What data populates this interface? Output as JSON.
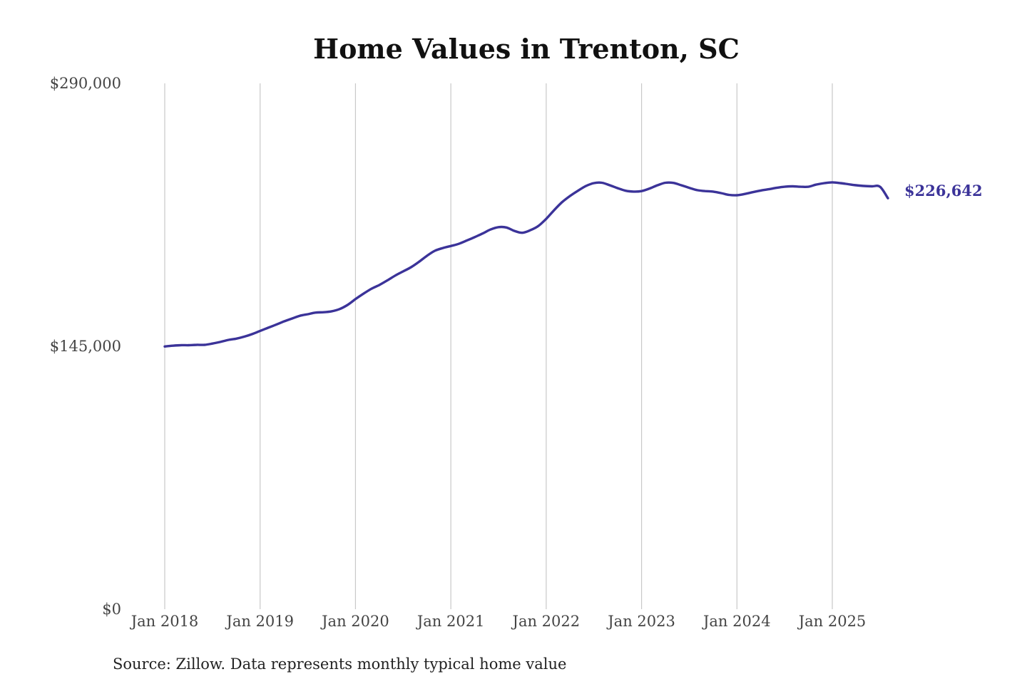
{
  "chart_data": {
    "type": "line",
    "title": "Home Values in Trenton, SC",
    "xlabel": "",
    "ylabel": "",
    "x_ticks": [
      "Jan 2018",
      "Jan 2019",
      "Jan 2020",
      "Jan 2021",
      "Jan 2022",
      "Jan 2023",
      "Jan 2024",
      "Jan 2025"
    ],
    "y_ticks": [
      "$0",
      "$145,000",
      "$290,000"
    ],
    "ylim": [
      0,
      290000
    ],
    "xlim": [
      "2018-01",
      "2025-08"
    ],
    "grid": "vertical",
    "color": "#3b3399",
    "end_label": "$226,642",
    "series": [
      {
        "x": [
          "2018-01",
          "2018-02",
          "2018-03",
          "2018-04",
          "2018-05",
          "2018-06",
          "2018-07",
          "2018-08",
          "2018-09",
          "2018-10",
          "2018-11",
          "2018-12",
          "2019-01",
          "2019-02",
          "2019-03",
          "2019-04",
          "2019-05",
          "2019-06",
          "2019-07",
          "2019-08",
          "2019-09",
          "2019-10",
          "2019-11",
          "2019-12",
          "2020-01",
          "2020-02",
          "2020-03",
          "2020-04",
          "2020-05",
          "2020-06",
          "2020-07",
          "2020-08",
          "2020-09",
          "2020-10",
          "2020-11",
          "2020-12",
          "2021-01",
          "2021-02",
          "2021-03",
          "2021-04",
          "2021-05",
          "2021-06",
          "2021-07",
          "2021-08",
          "2021-09",
          "2021-10",
          "2021-11",
          "2021-12",
          "2022-01",
          "2022-02",
          "2022-03",
          "2022-04",
          "2022-05",
          "2022-06",
          "2022-07",
          "2022-08",
          "2022-09",
          "2022-10",
          "2022-11",
          "2022-12",
          "2023-01",
          "2023-02",
          "2023-03",
          "2023-04",
          "2023-05",
          "2023-06",
          "2023-07",
          "2023-08",
          "2023-09",
          "2023-10",
          "2023-11",
          "2023-12",
          "2024-01",
          "2024-02",
          "2024-03",
          "2024-04",
          "2024-05",
          "2024-06",
          "2024-07",
          "2024-08",
          "2024-09",
          "2024-10",
          "2024-11",
          "2024-12",
          "2025-01",
          "2025-02",
          "2025-03",
          "2025-04",
          "2025-05",
          "2025-06",
          "2025-07",
          "2025-08"
        ],
        "values": [
          144900,
          145300,
          145600,
          145600,
          145800,
          145800,
          146500,
          147400,
          148500,
          149200,
          150300,
          151700,
          153500,
          155200,
          156900,
          158700,
          160300,
          161800,
          162700,
          163600,
          163800,
          164300,
          165500,
          167800,
          171000,
          174000,
          176700,
          178800,
          181300,
          184000,
          186300,
          188600,
          191600,
          194900,
          197700,
          199200,
          200300,
          201500,
          203300,
          205200,
          207200,
          209400,
          210700,
          210500,
          208600,
          207600,
          209000,
          211300,
          215300,
          220100,
          224500,
          227900,
          230800,
          233400,
          235000,
          235200,
          233800,
          232200,
          230800,
          230300,
          230600,
          232000,
          233800,
          235200,
          235100,
          233800,
          232400,
          231100,
          230600,
          230300,
          229500,
          228500,
          228300,
          229000,
          230000,
          230900,
          231600,
          232400,
          233000,
          233200,
          233000,
          233000,
          234200,
          235000,
          235400,
          235000,
          234400,
          233800,
          233400,
          233200,
          233000,
          226642
        ]
      }
    ]
  },
  "source_note": "Source: Zillow. Data represents monthly typical home value"
}
